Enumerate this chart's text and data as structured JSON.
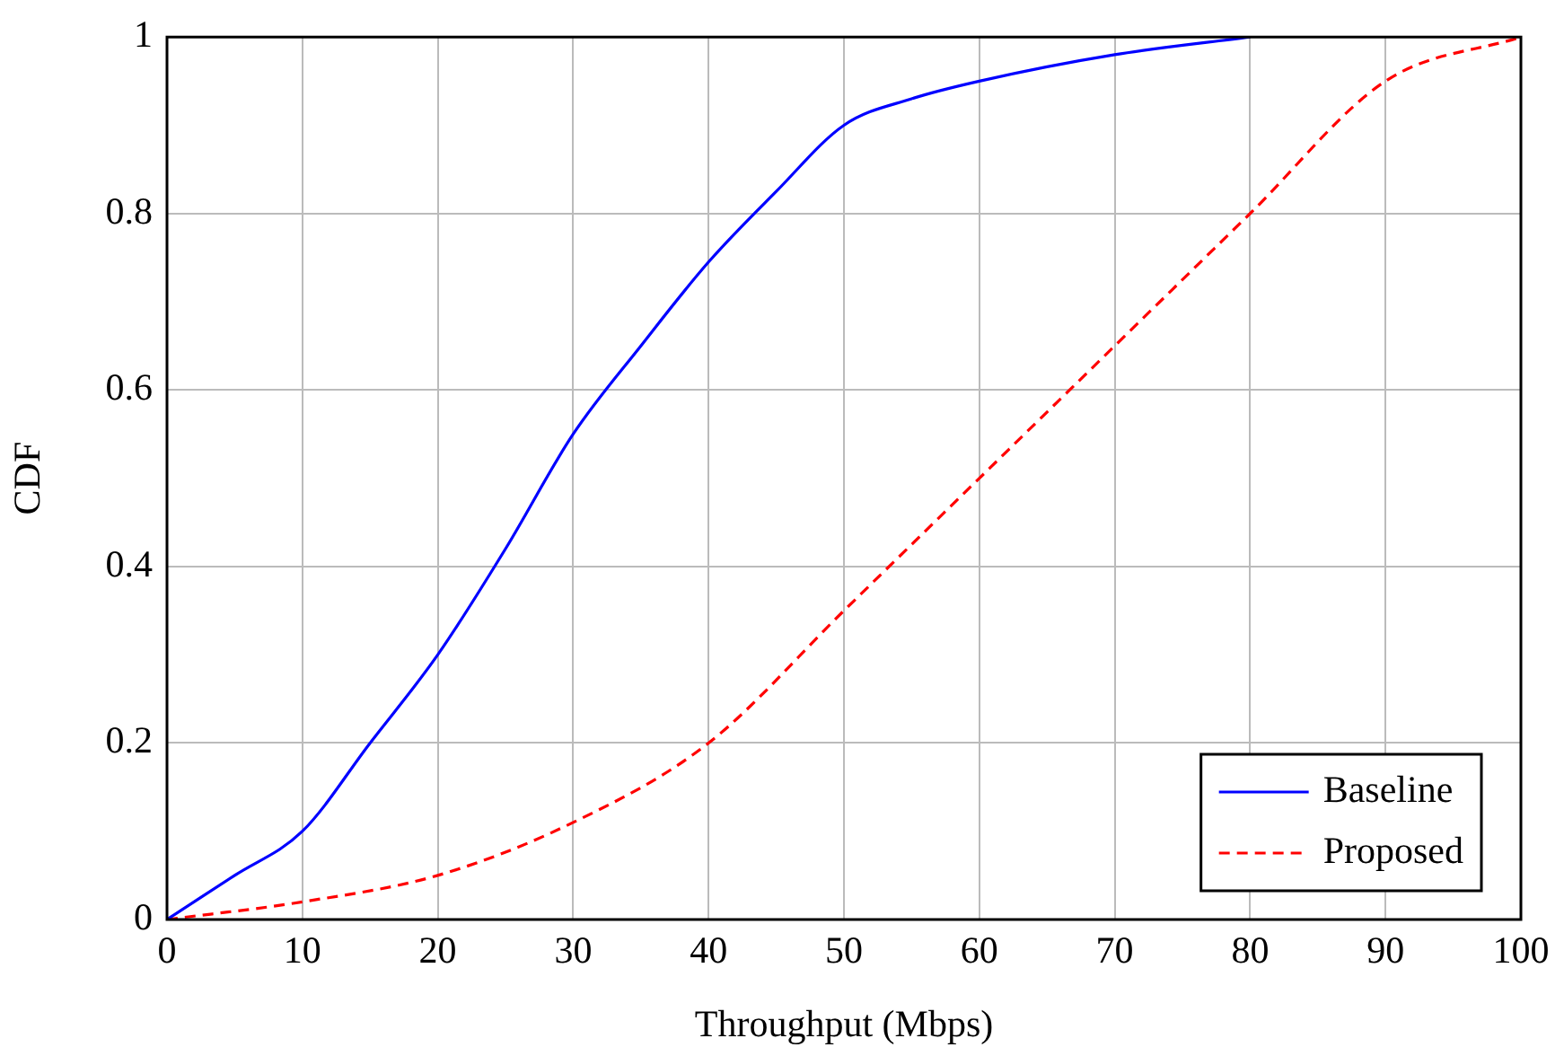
{
  "chart_data": {
    "type": "line",
    "xlabel": "Throughput (Mbps)",
    "ylabel": "CDF",
    "xlim": [
      0,
      100
    ],
    "xticks": [
      0,
      10,
      20,
      30,
      40,
      50,
      60,
      70,
      80,
      90,
      100
    ],
    "ylim": [
      0,
      1
    ],
    "yticks": [
      0,
      0.2,
      0.4,
      0.6,
      0.8,
      1
    ],
    "grid": true,
    "legend": "bottom right",
    "marker": "none",
    "series": [
      {
        "name": "Baseline",
        "color": "#0000ff",
        "line_style": "solid",
        "x": [
          0,
          5,
          10,
          15,
          20,
          25,
          30,
          35,
          40,
          45,
          50,
          55,
          60,
          70,
          80
        ],
        "values": [
          0,
          0.05,
          0.1,
          0.2,
          0.3,
          0.42,
          0.55,
          0.65,
          0.745,
          0.825,
          0.9,
          0.93,
          0.95,
          0.98,
          1
        ]
      },
      {
        "name": "Proposed",
        "color": "#ff0000",
        "line_style": "dashed",
        "x": [
          0,
          10,
          20,
          30,
          40,
          50,
          60,
          70,
          80,
          90,
          100
        ],
        "values": [
          0,
          0.02,
          0.05,
          0.11,
          0.2,
          0.35,
          0.5,
          0.65,
          0.8,
          0.95,
          1
        ]
      }
    ]
  }
}
